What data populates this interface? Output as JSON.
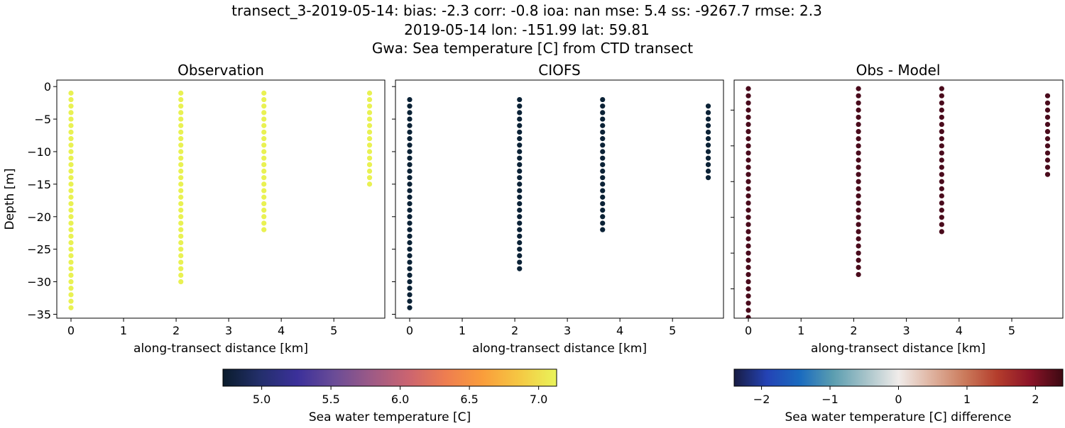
{
  "title_lines": [
    "transect_3-2019-05-14: bias: -2.3  corr: -0.8  ioa: nan  mse: 5.4  ss: -9267.7  rmse: 2.3",
    "2019-05-14 lon: -151.99 lat: 59.81",
    "Gwa: Sea temperature [C] from CTD transect"
  ],
  "chart_data": [
    {
      "type": "scatter",
      "title": "Observation",
      "xlabel": "along-transect distance [km]",
      "ylabel": "Depth [m]",
      "xlim": [
        -0.27,
        5.97
      ],
      "ylim": [
        -35.6,
        1
      ],
      "xticks": [
        0,
        1,
        2,
        3,
        4,
        5
      ],
      "yticks": [
        0,
        -5,
        -10,
        -15,
        -20,
        -25,
        -30,
        -35
      ],
      "show_yticklabels": true,
      "color": "#e9f152",
      "value_approx": 7.1,
      "profiles": [
        {
          "x": 0.0,
          "depth_top": -1,
          "depth_bottom": -34
        },
        {
          "x": 2.09,
          "depth_top": -1,
          "depth_bottom": -30
        },
        {
          "x": 3.67,
          "depth_top": -1,
          "depth_bottom": -22
        },
        {
          "x": 5.68,
          "depth_top": -1,
          "depth_bottom": -15
        }
      ]
    },
    {
      "type": "scatter",
      "title": "CIOFS",
      "xlabel": "along-transect distance [km]",
      "xlim": [
        -0.27,
        5.97
      ],
      "ylim": [
        -35.6,
        1
      ],
      "xticks": [
        0,
        1,
        2,
        3,
        4,
        5
      ],
      "yticks": [
        0,
        -5,
        -10,
        -15,
        -20,
        -25,
        -30,
        -35
      ],
      "show_yticklabels": false,
      "color": "#0b2236",
      "value_approx": 4.75,
      "profiles": [
        {
          "x": 0.0,
          "depth_top": -2,
          "depth_bottom": -34
        },
        {
          "x": 2.09,
          "depth_top": -2,
          "depth_bottom": -28
        },
        {
          "x": 3.67,
          "depth_top": -2,
          "depth_bottom": -22
        },
        {
          "x": 5.68,
          "depth_top": -3,
          "depth_bottom": -14
        }
      ]
    },
    {
      "type": "scatter",
      "title": "Obs - Model",
      "xlabel": "along-transect distance [km]",
      "xlim": [
        -0.27,
        5.97
      ],
      "ylim": [
        -34.1,
        -0.8
      ],
      "xticks": [
        0,
        1,
        2,
        3,
        4,
        5
      ],
      "yticks": [
        -5,
        -10,
        -15,
        -20,
        -25,
        -30
      ],
      "show_yticklabels": false,
      "color": "#4a0b1c",
      "value_approx": 2.35,
      "profiles": [
        {
          "x": 0.0,
          "depth_top": -2,
          "depth_bottom": -34
        },
        {
          "x": 2.09,
          "depth_top": -2,
          "depth_bottom": -28
        },
        {
          "x": 3.67,
          "depth_top": -2,
          "depth_bottom": -22
        },
        {
          "x": 5.68,
          "depth_top": -3,
          "depth_bottom": -14
        }
      ]
    }
  ],
  "colorbars": [
    {
      "label": "Sea water temperature [C]",
      "range": [
        4.72,
        7.13
      ],
      "ticks": [
        "5.0",
        "5.5",
        "6.0",
        "6.5",
        "7.0"
      ],
      "stops": [
        "#0a1c2c",
        "#232f6b",
        "#3b309a",
        "#6a4c97",
        "#9d5a86",
        "#cb6470",
        "#ee7d50",
        "#fa9d3b",
        "#f5c843",
        "#e9f45a"
      ]
    },
    {
      "label": "Sea water temperature [C] difference",
      "range": [
        -2.4,
        2.4
      ],
      "ticks": [
        "−2",
        "−1",
        "0",
        "1",
        "2"
      ],
      "tick_values": [
        -2,
        -1,
        0,
        1,
        2
      ],
      "stops": [
        "#181c43",
        "#2443b5",
        "#1a6bbf",
        "#5a9db0",
        "#a6c3c9",
        "#f0ecea",
        "#dfb3a0",
        "#cb7b5c",
        "#b43d2c",
        "#8c1428",
        "#3c0912"
      ]
    }
  ]
}
